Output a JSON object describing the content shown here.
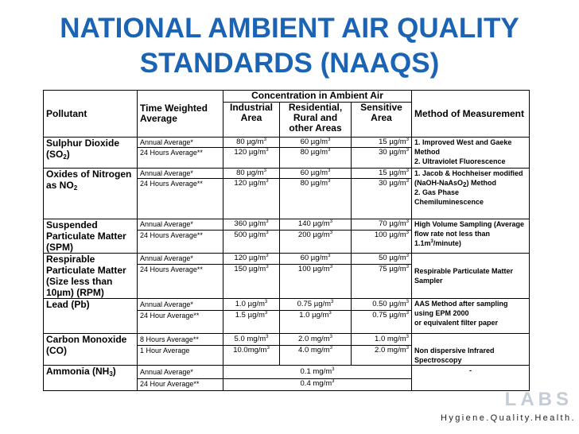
{
  "slide": {
    "title_line1": "NATIONAL AMBIENT AIR QUALITY",
    "title_line2": "STANDARDS (NAAQS)"
  },
  "table": {
    "headers": {
      "pollutant": "Pollutant",
      "time_weighted_average": "Time Weighted Average",
      "concentration": "Concentration in Ambient Air",
      "industrial": "Industrial Area",
      "residential": "Residential, Rural and other Areas",
      "sensitive": "Sensitive Area",
      "method": "Method of Measurement"
    },
    "rows": {
      "so2": {
        "name": "Sulphur Dioxide (SO",
        "sub": "2",
        "close": ")",
        "r1": {
          "avg": "Annual Average*",
          "ind": "80 µg/m",
          "res": "60 µg/m",
          "sen": "15 µg/m"
        },
        "r2": {
          "avg": "24 Hours Average**",
          "ind": "120 µg/m",
          "res": "80 µg/m",
          "sen": "30 µg/m"
        },
        "method": "1. Improved West and Gaeke Method\n2. Ultraviolet Fluorescence"
      },
      "no2": {
        "name": "Oxides of Nitrogen as NO",
        "sub": "2",
        "r1": {
          "avg": "Annual Average*",
          "ind": "80 µg/m",
          "res": "60 µg/m",
          "sen": "15 µg/m"
        },
        "r2": {
          "avg": "24 Hours Average**",
          "ind": "120 µg/m",
          "res": "80 µg/m",
          "sen": "30 µg/m"
        },
        "method_a": "1. Jacob & Hochheiser modified (NaOH-NaAsO",
        "method_sub": "2",
        "method_b": ") Method\n2. Gas Phase Chemiluminescence"
      },
      "spm": {
        "name": "Suspended Particulate Matter (SPM)",
        "r1": {
          "avg": "Annual Average*",
          "ind": "360 µg/m",
          "res": "140 µg/m",
          "sen": "70 µg/m"
        },
        "r2": {
          "avg": "24 Hours Average**",
          "ind": "500 µg/m",
          "res": "200 µg/m",
          "sen": "100 µg/m"
        },
        "method_a": "High Volume Sampling (Average flow rate not less than 1.1m",
        "method_b": "/minute)"
      },
      "rpm": {
        "name": "Respirable Particulate Matter (Size less than 10µm) (RPM)",
        "r1": {
          "avg": "Annual Average*",
          "ind": "120 µg/m",
          "res": "60 µg/m",
          "sen": "50 µg/m"
        },
        "r2": {
          "avg": "24 Hours Average**",
          "ind": "150 µg/m",
          "res": "100 µg/m",
          "sen": "75 µg/m"
        },
        "method": "Respirable Particulate Matter Sampler"
      },
      "pb": {
        "name": "Lead (Pb)",
        "r1": {
          "avg": "Annual Average*",
          "ind": "1.0 µg/m",
          "res": "0.75 µg/m",
          "sen": "0.50 µg/m"
        },
        "r2": {
          "avg": "24 Hour Average**",
          "ind": "1.5 µg/m",
          "res": "1.0 µg/m",
          "sen": "0.75 µg/m"
        },
        "method": "AAS Method after sampling using EPM 2000\nor equivalent filter paper"
      },
      "co": {
        "name": "Carbon Monoxide (CO)",
        "r1": {
          "avg": "8 Hours Average**",
          "ind": "5.0 mg/m",
          "res": "2.0 mg/m",
          "sen": "1.0 mg/m"
        },
        "r2": {
          "avg": "1 Hour Average",
          "ind": "10.0mg/m",
          "res": "4.0 mg/m",
          "sen": "2.0 mg/m"
        },
        "method": "Non dispersive Infrared Spectroscopy"
      },
      "nh3": {
        "name": "Ammonia (NH",
        "sub": "3",
        "close": ")",
        "r1": {
          "avg": "Annual Average*",
          "val": "0.1 mg/m"
        },
        "r2": {
          "avg": "24 Hour Average**",
          "val": "0.4 mg/m"
        },
        "method": "-"
      },
      "unit_superscript": "3"
    }
  },
  "footer": {
    "logo_text": "LABS",
    "tagline": "Hygiene.Quality.Health."
  },
  "colors": {
    "title": "#1a63b5",
    "logo_faded": "#c4ccd6"
  }
}
